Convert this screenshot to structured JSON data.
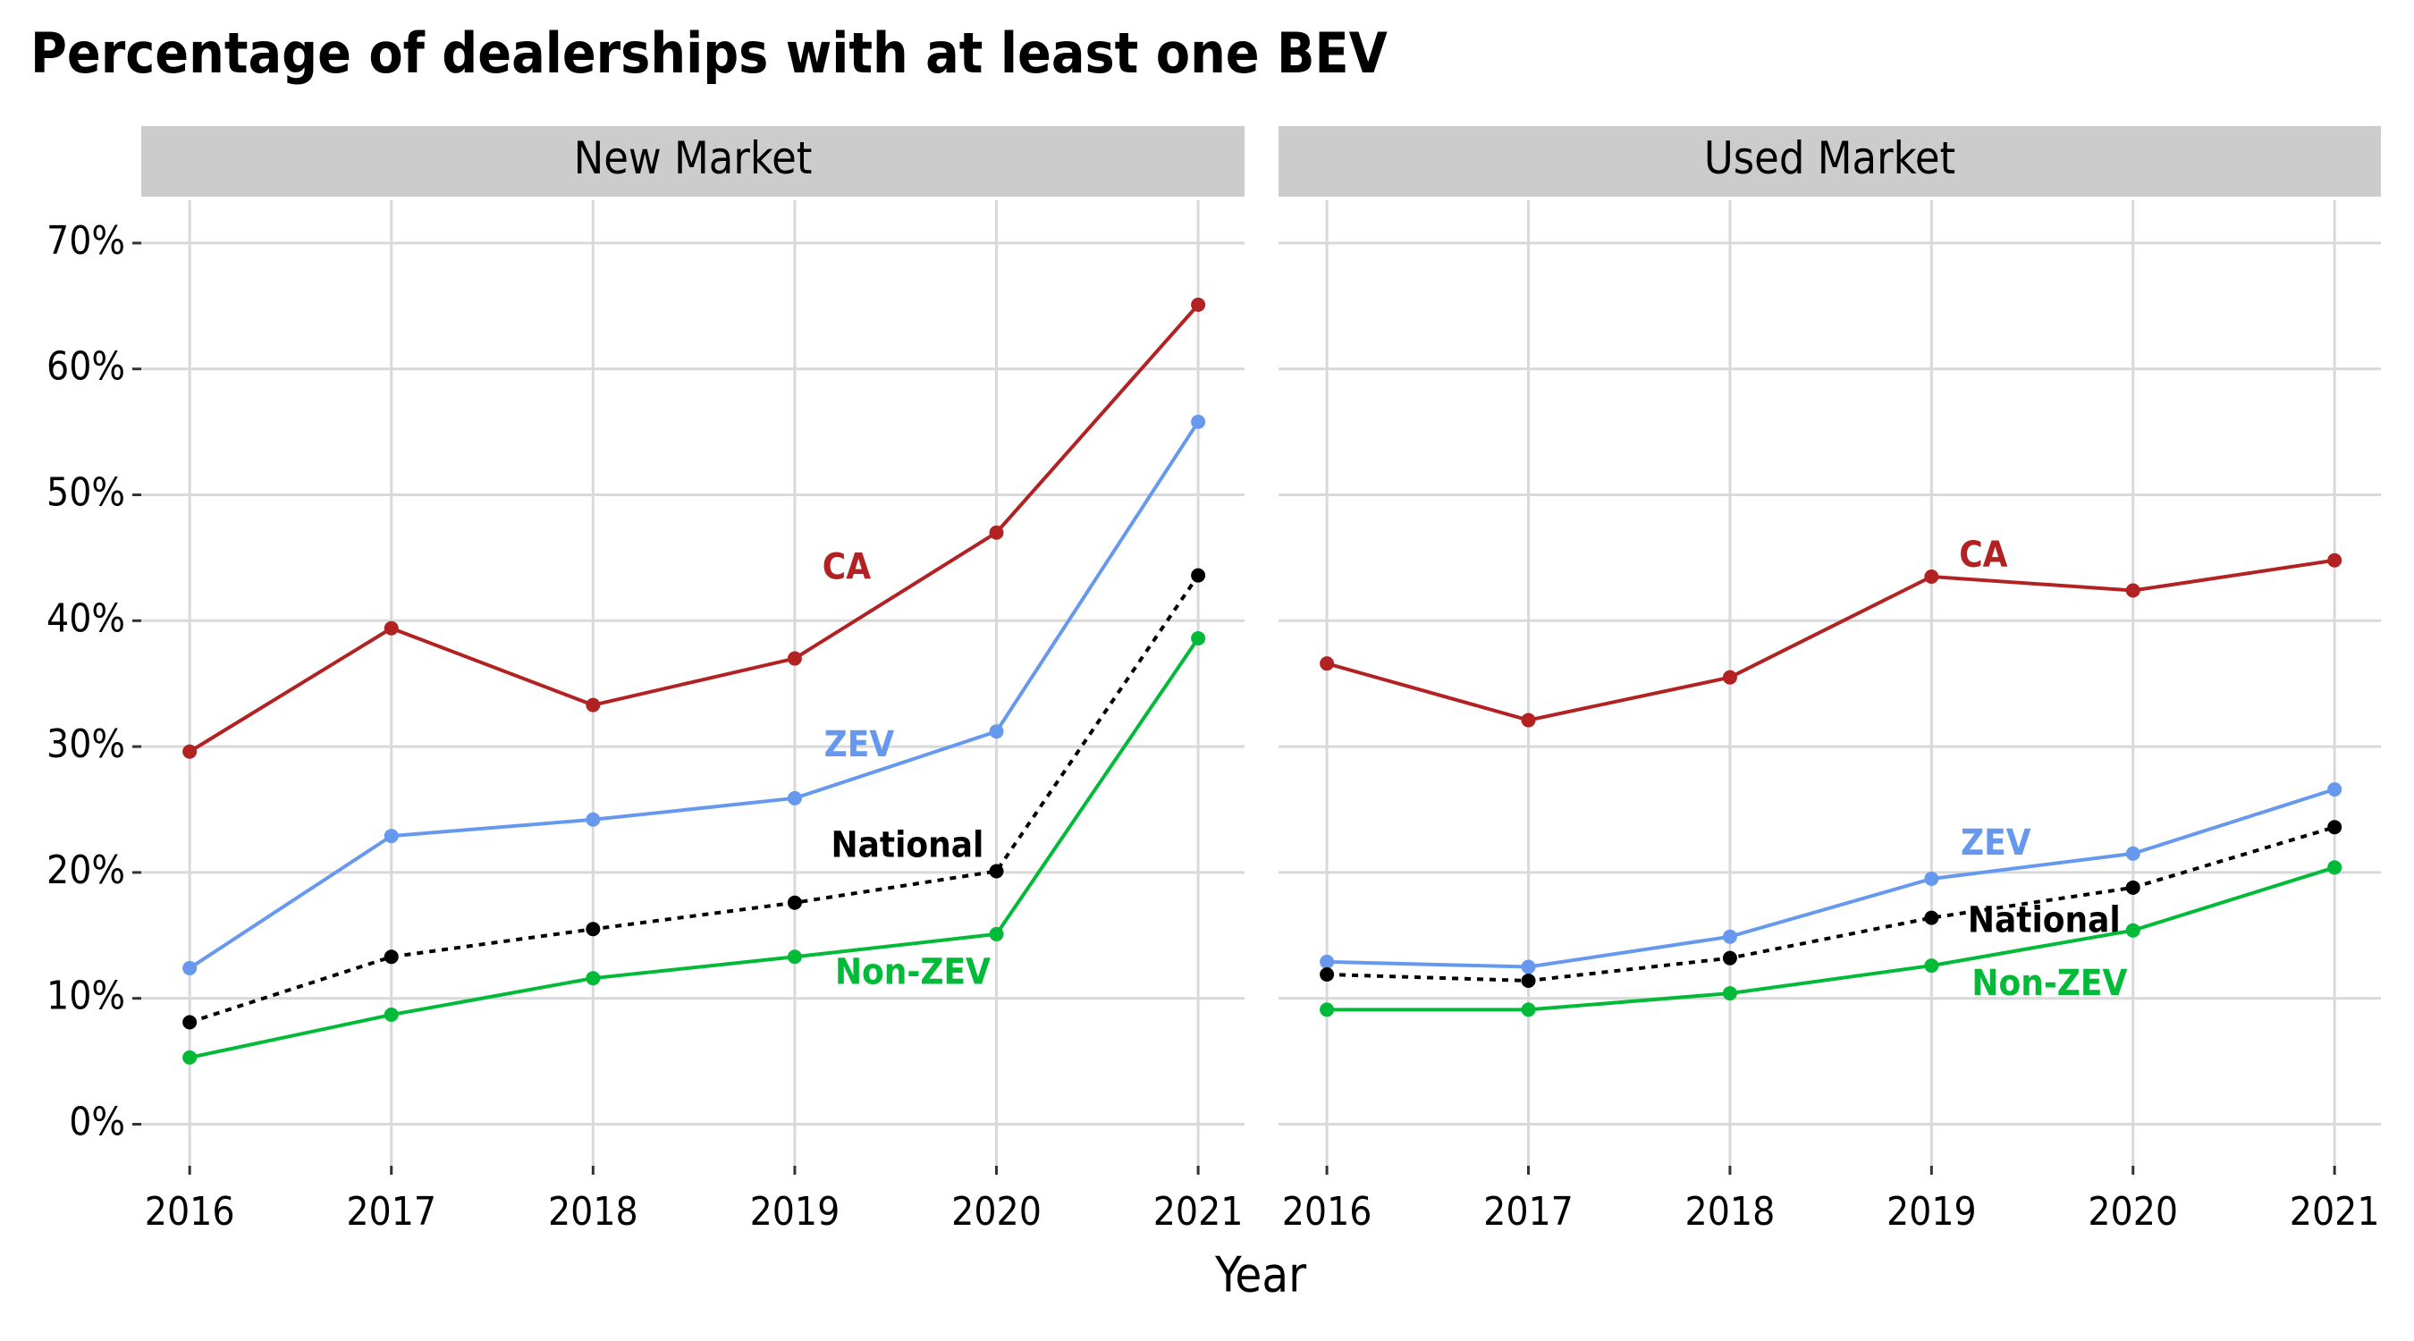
{
  "title": "Percentage of dealerships with at least one BEV",
  "x_label": "Year",
  "chart_data": [
    {
      "type": "line",
      "facet": "New Market",
      "x": [
        2016,
        2017,
        2018,
        2019,
        2020,
        2021
      ],
      "xlim": [
        2015.76,
        2021.23
      ],
      "xticks": [
        2016,
        2017,
        2018,
        2019,
        2020,
        2021
      ],
      "ylim": [
        -3.3,
        73.4
      ],
      "yticks": [
        {
          "value": 0,
          "label": "0%"
        },
        {
          "value": 10,
          "label": "10%"
        },
        {
          "value": 20,
          "label": "20%"
        },
        {
          "value": 30,
          "label": "30%"
        },
        {
          "value": 40,
          "label": "40%"
        },
        {
          "value": 50,
          "label": "50%"
        },
        {
          "value": 60,
          "label": "60%"
        },
        {
          "value": 70,
          "label": "70%"
        }
      ],
      "grid": true,
      "series": [
        {
          "name": "CA",
          "color": "#b22222",
          "line_style": "solid",
          "values": [
            29.6,
            39.4,
            33.3,
            37.0,
            47.0,
            65.1
          ]
        },
        {
          "name": "ZEV",
          "color": "#6699ee",
          "line_style": "solid",
          "values": [
            12.4,
            22.9,
            24.2,
            25.9,
            31.2,
            55.8
          ]
        },
        {
          "name": "National",
          "color": "#000000",
          "line_style": "dotted",
          "values": [
            8.1,
            13.3,
            15.5,
            17.6,
            20.1,
            43.6
          ]
        },
        {
          "name": "Non-ZEV",
          "color": "#00ba38",
          "line_style": "solid",
          "values": [
            5.3,
            8.7,
            11.6,
            13.3,
            15.1,
            38.6
          ]
        }
      ]
    },
    {
      "type": "line",
      "facet": "Used Market",
      "x": [
        2016,
        2017,
        2018,
        2019,
        2020,
        2021
      ],
      "xlim": [
        2015.76,
        2021.23
      ],
      "xticks": [
        2016,
        2017,
        2018,
        2019,
        2020,
        2021
      ],
      "ylim": [
        -3.3,
        73.4
      ],
      "yticks": [
        0,
        10,
        20,
        30,
        40,
        50,
        60,
        70
      ],
      "grid": true,
      "series": [
        {
          "name": "CA",
          "color": "#b22222",
          "line_style": "solid",
          "values": [
            36.6,
            32.1,
            35.5,
            43.5,
            42.4,
            44.8
          ]
        },
        {
          "name": "ZEV",
          "color": "#6699ee",
          "line_style": "solid",
          "values": [
            12.9,
            12.5,
            14.9,
            19.5,
            21.5,
            26.6
          ]
        },
        {
          "name": "National",
          "color": "#000000",
          "line_style": "dotted",
          "values": [
            11.9,
            11.4,
            13.2,
            16.4,
            18.8,
            23.6
          ]
        },
        {
          "name": "Non-ZEV",
          "color": "#00ba38",
          "line_style": "solid",
          "values": [
            9.1,
            9.1,
            10.4,
            12.6,
            15.4,
            20.4
          ]
        }
      ]
    }
  ]
}
